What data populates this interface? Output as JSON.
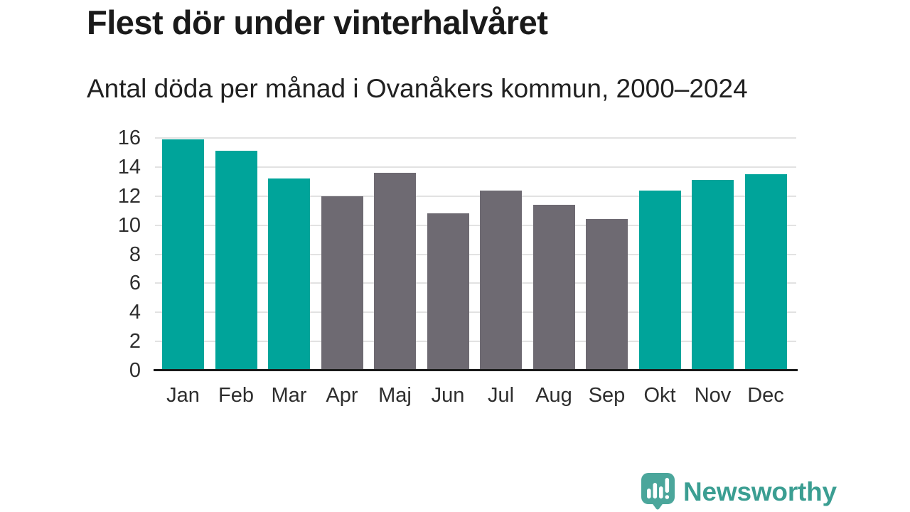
{
  "title": "Flest dör under vinterhalvåret",
  "subtitle": "Antal döda per månad i Ovanåkers kommun, 2000–2024",
  "chart_data": {
    "type": "bar",
    "title": "Flest dör under vinterhalvåret",
    "subtitle": "Antal döda per månad i Ovanåkers kommun, 2000–2024",
    "categories": [
      "Jan",
      "Feb",
      "Mar",
      "Apr",
      "Maj",
      "Jun",
      "Jul",
      "Aug",
      "Sep",
      "Okt",
      "Nov",
      "Dec"
    ],
    "values": [
      15.9,
      15.1,
      13.2,
      12.0,
      13.6,
      10.8,
      12.4,
      11.4,
      10.4,
      12.4,
      13.1,
      13.5
    ],
    "highlighted_categories": [
      "Jan",
      "Feb",
      "Mar",
      "Okt",
      "Nov",
      "Dec"
    ],
    "highlight_color": "#00a49a",
    "base_color": "#6e6a72",
    "xlabel": "",
    "ylabel": "",
    "ylim": [
      0,
      16
    ],
    "yticks": [
      0,
      2,
      4,
      6,
      8,
      10,
      12,
      14,
      16
    ],
    "grid": "horizontal",
    "legend": "none"
  },
  "colors": {
    "background": "#ffffff",
    "title_text": "#1a1a1a",
    "subtitle_text": "#212121",
    "axis_text": "#2e2e2e",
    "gridline": "#e2e2e2",
    "axis_line": "#1a1a1a",
    "logo_teal": "#4ba69b",
    "brand_text": "#3b9e92"
  },
  "footer": {
    "brand": "Newsworthy",
    "logo_icon": "newsworthy-speech-bubble-bar-chart-icon"
  }
}
